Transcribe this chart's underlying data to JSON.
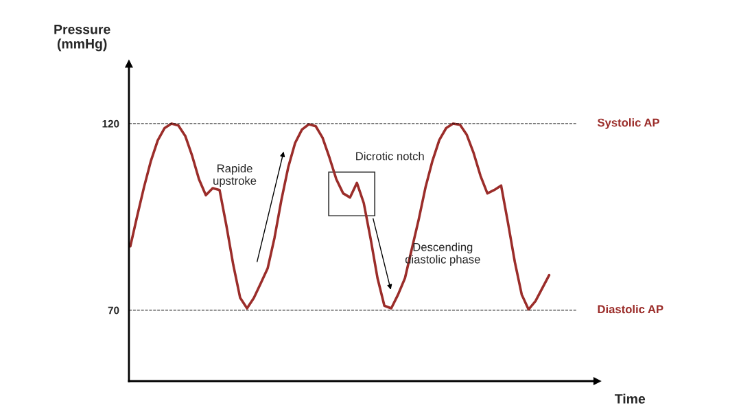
{
  "chart_data": {
    "type": "line",
    "xlabel": "Time",
    "ylabel": "Pressure\n(mmHg)",
    "categories": [
      null,
      null,
      null,
      null,
      null,
      null,
      null,
      null,
      null,
      null,
      null,
      null,
      null,
      null,
      null,
      null,
      null,
      null,
      null,
      null,
      null,
      null,
      null,
      null,
      null,
      null,
      null,
      null,
      null,
      null,
      null,
      null,
      null,
      null,
      null,
      null,
      null,
      null,
      null,
      null,
      null,
      null,
      null,
      null,
      null,
      null,
      null,
      null,
      null,
      null,
      null,
      null,
      null,
      null,
      null,
      null,
      null,
      null,
      null,
      null,
      null,
      null
    ],
    "series": [
      {
        "color": "#9b2d2a",
        "values": [
          87.1,
          95.2,
          103.0,
          110.0,
          115.5,
          118.8,
          120,
          119.5,
          116.7,
          111.4,
          105.1,
          100.8,
          102.7,
          102.2,
          92.6,
          82.1,
          73.3,
          70.5,
          73.3,
          77.2,
          81.2,
          89.4,
          99.5,
          108.3,
          114.8,
          118.4,
          119.8,
          119.3,
          116.2,
          110.9,
          105.1,
          101.3,
          100.2,
          104.1,
          98.7,
          89.1,
          78.6,
          71.2,
          70.5,
          74.2,
          78.6,
          null,
          94.3,
          103.0,
          110.0,
          115.6,
          118.8,
          120,
          119.7,
          117.0,
          112.1,
          106.0,
          101.3,
          102.2,
          103.4,
          93.4,
          82.9,
          74.2,
          70.2,
          72.4,
          75.9,
          79.4
        ]
      }
    ],
    "ylim": [
      51,
      136
    ],
    "yticks": [
      70,
      120
    ],
    "ref_lines": [
      {
        "axis": "y",
        "value": 120,
        "label": "Systolic AP",
        "color": "#000000",
        "line_style": "dashed"
      },
      {
        "axis": "y",
        "value": 70,
        "label": "Diastolic AP",
        "color": "#000000",
        "line_style": "dashed"
      }
    ],
    "annotations": [
      "Rapide\nupstroke",
      "Dicrotic notch",
      "Descending\ndiastolic phase"
    ],
    "grid": false,
    "legend": false,
    "marker": "none",
    "line_style": "solid"
  }
}
